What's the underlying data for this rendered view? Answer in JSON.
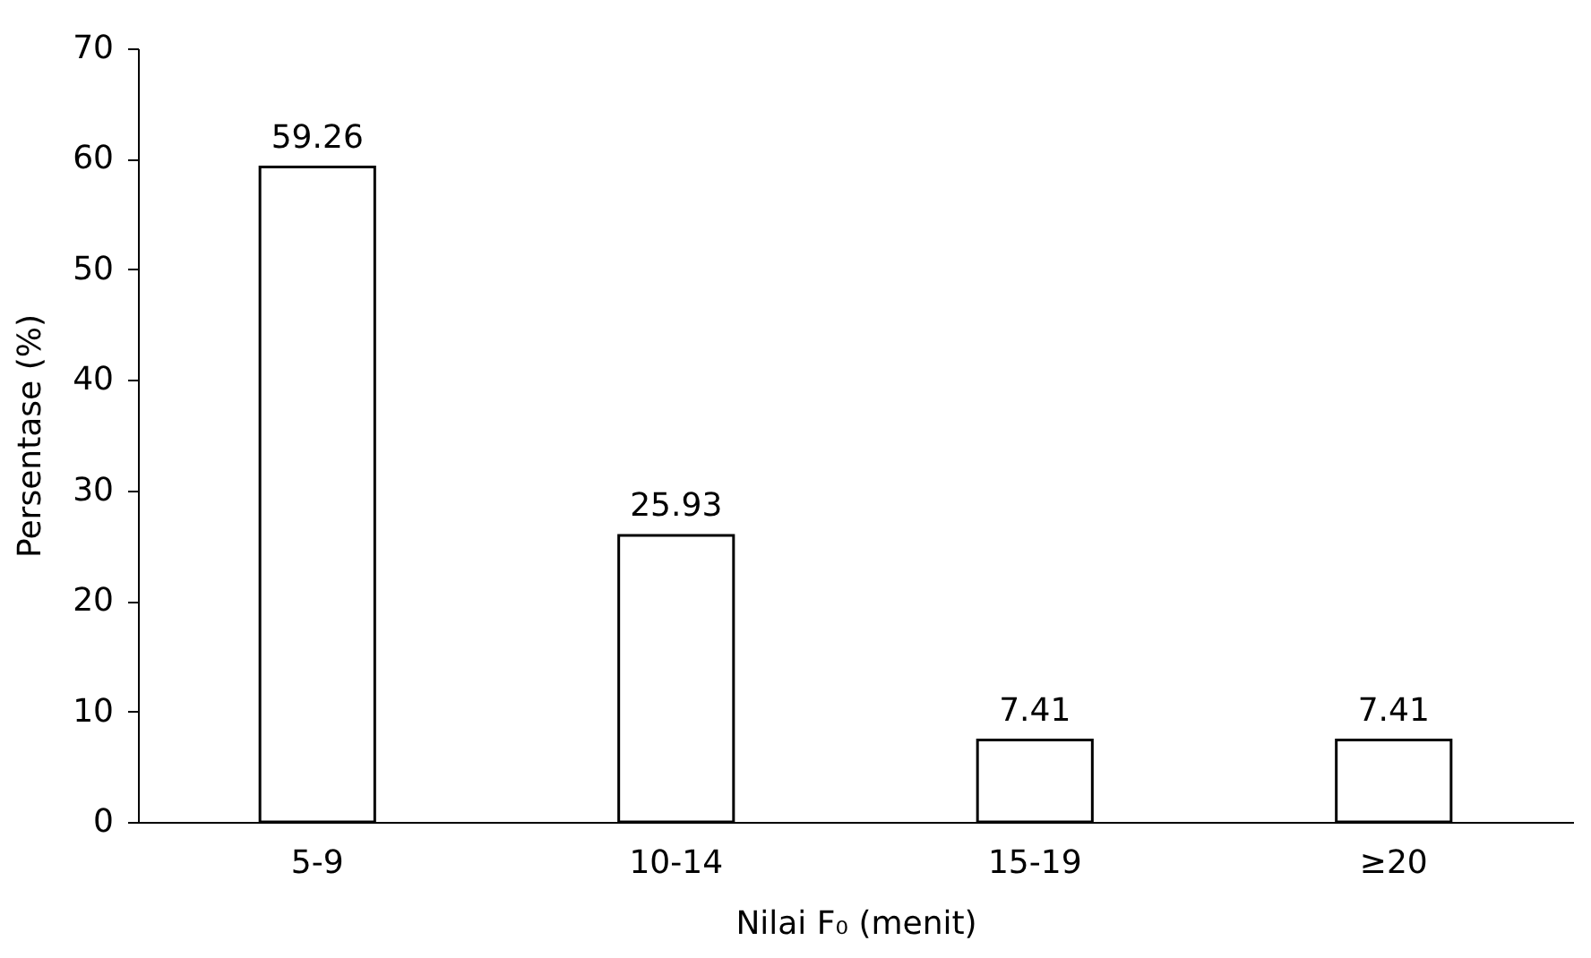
{
  "chart_data": {
    "type": "bar",
    "xlabel": "Nilai F₀ (menit)",
    "ylabel": "Persentase (%)",
    "categories": [
      "5-9",
      "10-14",
      "15-19",
      "≥20"
    ],
    "values": [
      59.26,
      25.93,
      7.41,
      7.41
    ],
    "color": "#ffffff",
    "ylim": [
      0,
      70
    ],
    "yticks": [
      0,
      10,
      20,
      30,
      40,
      50,
      60,
      70
    ],
    "grid": false,
    "data_labels": true
  }
}
